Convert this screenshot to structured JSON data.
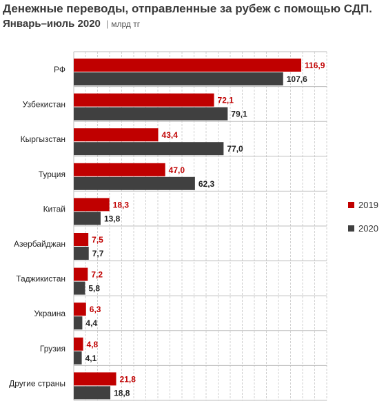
{
  "title": "Денежные переводы, отправленные за рубеж с помощью СДП.",
  "subtitle": "Январь–июль 2020",
  "unit": "млрд тг",
  "colors": {
    "2019": "#c00000",
    "2020": "#404040",
    "grid": "#d0d0d0",
    "axis": "#bdbdbd"
  },
  "chart_data": {
    "type": "bar",
    "orientation": "horizontal",
    "categories": [
      "РФ",
      "Узбекистан",
      "Кыргызстан",
      "Турция",
      "Китай",
      "Азербайджан",
      "Таджикистан",
      "Украина",
      "Грузия",
      "Другие страны"
    ],
    "series": [
      {
        "name": "2019",
        "values": [
          116.9,
          72.1,
          43.4,
          47.0,
          18.3,
          7.5,
          7.2,
          6.3,
          4.8,
          21.8
        ],
        "labels": [
          "116,9",
          "72,1",
          "43,4",
          "47,0",
          "18,3",
          "7,5",
          "7,2",
          "6,3",
          "4,8",
          "21,8"
        ]
      },
      {
        "name": "2020",
        "values": [
          107.6,
          79.1,
          77.0,
          62.3,
          13.8,
          7.7,
          5.8,
          4.4,
          4.1,
          18.8
        ],
        "labels": [
          "107,6",
          "79,1",
          "77,0",
          "62,3",
          "13,8",
          "7,7",
          "5,8",
          "4,4",
          "4,1",
          "18,8"
        ]
      }
    ],
    "xlim": [
      0,
      130
    ],
    "grid": true,
    "legend": "right"
  }
}
